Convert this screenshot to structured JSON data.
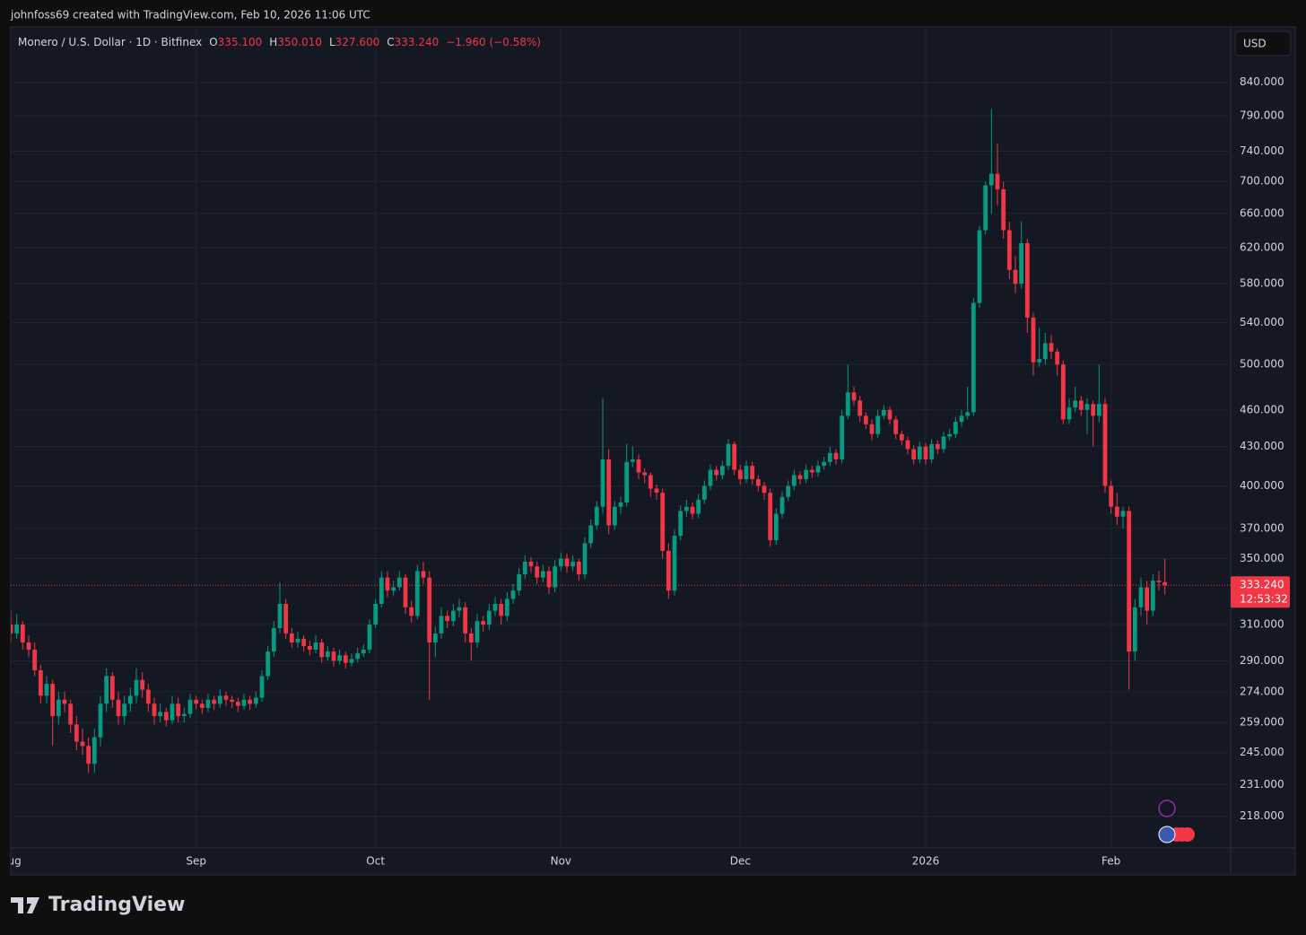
{
  "header": {
    "caption": "johnfoss69 created with TradingView.com, Feb 10, 2026 11:06 UTC"
  },
  "brand": "TradingView",
  "currency": "USD",
  "chart_data": {
    "type": "candlestick",
    "title": "Monero / U.S. Dollar · 1D · Bitfinex",
    "stats": {
      "o": "O",
      "open": "335.100",
      "h": "H",
      "high": "350.010",
      "l": "L",
      "low": "327.600",
      "c": "C",
      "close": "333.240",
      "change": "−1.960 (−0.58%)"
    },
    "last_price": {
      "value": 333.24,
      "label": "333.240"
    },
    "countdown": "12:53:32",
    "up_color": "#089981",
    "down_color": "#f23645",
    "log_scale": true,
    "grid": true,
    "ylim": [
      205.6,
      930
    ],
    "yticks": [
      {
        "value": 840,
        "label": "840.000"
      },
      {
        "value": 790,
        "label": "790.000"
      },
      {
        "value": 740,
        "label": "740.000"
      },
      {
        "value": 700,
        "label": "700.000"
      },
      {
        "value": 660,
        "label": "660.000"
      },
      {
        "value": 620,
        "label": "620.000"
      },
      {
        "value": 580,
        "label": "580.000"
      },
      {
        "value": 540,
        "label": "540.000"
      },
      {
        "value": 500,
        "label": "500.000"
      },
      {
        "value": 460,
        "label": "460.000"
      },
      {
        "value": 430,
        "label": "430.000"
      },
      {
        "value": 400,
        "label": "400.000"
      },
      {
        "value": 370,
        "label": "370.000"
      },
      {
        "value": 350,
        "label": "350.000"
      },
      {
        "value": 310,
        "label": "310.000"
      },
      {
        "value": 290,
        "label": "290.000"
      },
      {
        "value": 274,
        "label": "274.000"
      },
      {
        "value": 259,
        "label": "259.000"
      },
      {
        "value": 245,
        "label": "245.000"
      },
      {
        "value": 231,
        "label": "231.000"
      },
      {
        "value": 218,
        "label": "218.000"
      }
    ],
    "xlim": [
      "2025-08-01",
      "2026-02-21"
    ],
    "xticks": [
      {
        "value": "2025-08-01",
        "label": "Aug"
      },
      {
        "value": "2025-09-01",
        "label": "Sep"
      },
      {
        "value": "2025-10-01",
        "label": "Oct"
      },
      {
        "value": "2025-11-01",
        "label": "Nov"
      },
      {
        "value": "2025-12-01",
        "label": "Dec"
      },
      {
        "value": "2026-01-01",
        "label": "2026"
      },
      {
        "value": "2026-02-01",
        "label": "Feb"
      }
    ],
    "x": [
      "2025-08-01",
      "2025-08-02",
      "2025-08-03",
      "2025-08-04",
      "2025-08-05",
      "2025-08-06",
      "2025-08-07",
      "2025-08-08",
      "2025-08-09",
      "2025-08-10",
      "2025-08-11",
      "2025-08-12",
      "2025-08-13",
      "2025-08-14",
      "2025-08-15",
      "2025-08-16",
      "2025-08-17",
      "2025-08-18",
      "2025-08-19",
      "2025-08-20",
      "2025-08-21",
      "2025-08-22",
      "2025-08-23",
      "2025-08-24",
      "2025-08-25",
      "2025-08-26",
      "2025-08-27",
      "2025-08-28",
      "2025-08-29",
      "2025-08-30",
      "2025-08-31",
      "2025-09-01",
      "2025-09-02",
      "2025-09-03",
      "2025-09-04",
      "2025-09-05",
      "2025-09-06",
      "2025-09-07",
      "2025-09-08",
      "2025-09-09",
      "2025-09-10",
      "2025-09-11",
      "2025-09-12",
      "2025-09-13",
      "2025-09-14",
      "2025-09-15",
      "2025-09-16",
      "2025-09-17",
      "2025-09-18",
      "2025-09-19",
      "2025-09-20",
      "2025-09-21",
      "2025-09-22",
      "2025-09-23",
      "2025-09-24",
      "2025-09-25",
      "2025-09-26",
      "2025-09-27",
      "2025-09-28",
      "2025-09-29",
      "2025-09-30",
      "2025-10-01",
      "2025-10-02",
      "2025-10-03",
      "2025-10-04",
      "2025-10-05",
      "2025-10-06",
      "2025-10-07",
      "2025-10-08",
      "2025-10-09",
      "2025-10-10",
      "2025-10-11",
      "2025-10-12",
      "2025-10-13",
      "2025-10-14",
      "2025-10-15",
      "2025-10-16",
      "2025-10-17",
      "2025-10-18",
      "2025-10-19",
      "2025-10-20",
      "2025-10-21",
      "2025-10-22",
      "2025-10-23",
      "2025-10-24",
      "2025-10-25",
      "2025-10-26",
      "2025-10-27",
      "2025-10-28",
      "2025-10-29",
      "2025-10-30",
      "2025-10-31",
      "2025-11-01",
      "2025-11-02",
      "2025-11-03",
      "2025-11-04",
      "2025-11-05",
      "2025-11-06",
      "2025-11-07",
      "2025-11-08",
      "2025-11-09",
      "2025-11-10",
      "2025-11-11",
      "2025-11-12",
      "2025-11-13",
      "2025-11-14",
      "2025-11-15",
      "2025-11-16",
      "2025-11-17",
      "2025-11-18",
      "2025-11-19",
      "2025-11-20",
      "2025-11-21",
      "2025-11-22",
      "2025-11-23",
      "2025-11-24",
      "2025-11-25",
      "2025-11-26",
      "2025-11-27",
      "2025-11-28",
      "2025-11-29",
      "2025-11-30",
      "2025-12-01",
      "2025-12-02",
      "2025-12-03",
      "2025-12-04",
      "2025-12-05",
      "2025-12-06",
      "2025-12-07",
      "2025-12-08",
      "2025-12-09",
      "2025-12-10",
      "2025-12-11",
      "2025-12-12",
      "2025-12-13",
      "2025-12-14",
      "2025-12-15",
      "2025-12-16",
      "2025-12-17",
      "2025-12-18",
      "2025-12-19",
      "2025-12-20",
      "2025-12-21",
      "2025-12-22",
      "2025-12-23",
      "2025-12-24",
      "2025-12-25",
      "2025-12-26",
      "2025-12-27",
      "2025-12-28",
      "2025-12-29",
      "2025-12-30",
      "2025-12-31",
      "2026-01-01",
      "2026-01-02",
      "2026-01-03",
      "2026-01-04",
      "2026-01-05",
      "2026-01-06",
      "2026-01-07",
      "2026-01-08",
      "2026-01-09",
      "2026-01-10",
      "2026-01-11",
      "2026-01-12",
      "2026-01-13",
      "2026-01-14",
      "2026-01-15",
      "2026-01-16",
      "2026-01-17",
      "2026-01-18",
      "2026-01-19",
      "2026-01-20",
      "2026-01-21",
      "2026-01-22",
      "2026-01-23",
      "2026-01-24",
      "2026-01-25",
      "2026-01-26",
      "2026-01-27",
      "2026-01-28",
      "2026-01-29",
      "2026-01-30",
      "2026-01-31",
      "2026-02-01",
      "2026-02-02",
      "2026-02-03",
      "2026-02-04",
      "2026-02-05",
      "2026-02-06",
      "2026-02-07",
      "2026-02-08",
      "2026-02-09",
      "2026-02-10"
    ],
    "ohlc": [
      [
        310,
        318,
        300,
        305
      ],
      [
        305,
        316,
        302,
        310
      ],
      [
        310,
        312,
        296,
        300
      ],
      [
        300,
        304,
        292,
        296
      ],
      [
        296,
        300,
        282,
        285
      ],
      [
        285,
        288,
        268,
        272
      ],
      [
        272,
        282,
        268,
        278
      ],
      [
        278,
        280,
        248,
        262
      ],
      [
        262,
        274,
        258,
        270
      ],
      [
        270,
        274,
        264,
        268
      ],
      [
        268,
        270,
        254,
        258
      ],
      [
        258,
        262,
        246,
        250
      ],
      [
        250,
        256,
        244,
        248
      ],
      [
        248,
        252,
        236,
        240
      ],
      [
        240,
        256,
        236,
        252
      ],
      [
        252,
        272,
        248,
        268
      ],
      [
        268,
        286,
        264,
        282
      ],
      [
        282,
        284,
        266,
        270
      ],
      [
        270,
        274,
        258,
        262
      ],
      [
        262,
        272,
        258,
        268
      ],
      [
        268,
        276,
        264,
        272
      ],
      [
        272,
        286,
        268,
        280
      ],
      [
        280,
        284,
        271,
        275
      ],
      [
        275,
        278,
        264,
        268
      ],
      [
        268,
        271,
        258,
        262
      ],
      [
        262,
        268,
        259,
        264
      ],
      [
        264,
        266,
        257,
        260
      ],
      [
        260,
        272,
        258,
        268
      ],
      [
        268,
        271,
        259,
        262
      ],
      [
        262,
        266,
        259,
        263
      ],
      [
        263,
        273,
        261,
        270
      ],
      [
        270,
        272,
        265,
        268
      ],
      [
        268,
        270,
        263,
        266
      ],
      [
        266,
        273,
        264,
        270
      ],
      [
        270,
        272,
        265,
        268
      ],
      [
        268,
        275,
        266,
        272
      ],
      [
        272,
        274,
        267,
        270
      ],
      [
        270,
        272,
        266,
        269
      ],
      [
        269,
        271,
        264,
        267
      ],
      [
        267,
        273,
        265,
        270
      ],
      [
        270,
        272,
        265,
        268
      ],
      [
        268,
        274,
        266,
        271
      ],
      [
        271,
        285,
        269,
        282
      ],
      [
        282,
        298,
        280,
        295
      ],
      [
        295,
        312,
        292,
        308
      ],
      [
        308,
        335,
        305,
        322
      ],
      [
        322,
        325,
        302,
        305
      ],
      [
        305,
        308,
        297,
        300
      ],
      [
        300,
        306,
        297,
        302
      ],
      [
        302,
        304,
        295,
        298
      ],
      [
        298,
        301,
        293,
        296
      ],
      [
        296,
        304,
        294,
        300
      ],
      [
        300,
        302,
        289,
        292
      ],
      [
        292,
        298,
        290,
        295
      ],
      [
        295,
        297,
        287,
        290
      ],
      [
        290,
        296,
        288,
        293
      ],
      [
        293,
        295,
        286,
        289
      ],
      [
        289,
        294,
        287,
        291
      ],
      [
        291,
        297,
        289,
        294
      ],
      [
        294,
        299,
        292,
        296
      ],
      [
        296,
        313,
        294,
        310
      ],
      [
        310,
        325,
        308,
        322
      ],
      [
        322,
        342,
        320,
        338
      ],
      [
        338,
        342,
        326,
        330
      ],
      [
        330,
        336,
        327,
        332
      ],
      [
        332,
        342,
        330,
        338
      ],
      [
        338,
        340,
        316,
        320
      ],
      [
        320,
        324,
        311,
        315
      ],
      [
        315,
        346,
        313,
        342
      ],
      [
        342,
        348,
        334,
        338
      ],
      [
        338,
        342,
        270,
        300
      ],
      [
        300,
        309,
        292,
        305
      ],
      [
        305,
        320,
        302,
        315
      ],
      [
        315,
        318,
        308,
        312
      ],
      [
        312,
        322,
        309,
        318
      ],
      [
        318,
        325,
        314,
        320
      ],
      [
        320,
        323,
        300,
        305
      ],
      [
        305,
        308,
        290,
        300
      ],
      [
        300,
        316,
        297,
        312
      ],
      [
        312,
        315,
        306,
        310
      ],
      [
        310,
        322,
        307,
        318
      ],
      [
        318,
        326,
        315,
        322
      ],
      [
        322,
        325,
        310,
        315
      ],
      [
        315,
        329,
        312,
        325
      ],
      [
        325,
        334,
        322,
        330
      ],
      [
        330,
        344,
        327,
        340
      ],
      [
        340,
        352,
        337,
        348
      ],
      [
        348,
        351,
        341,
        345
      ],
      [
        345,
        348,
        334,
        338
      ],
      [
        338,
        346,
        335,
        342
      ],
      [
        342,
        345,
        328,
        332
      ],
      [
        332,
        349,
        329,
        345
      ],
      [
        345,
        354,
        342,
        350
      ],
      [
        350,
        353,
        341,
        345
      ],
      [
        345,
        352,
        342,
        348
      ],
      [
        348,
        350,
        336,
        340
      ],
      [
        340,
        364,
        337,
        360
      ],
      [
        360,
        376,
        357,
        372
      ],
      [
        372,
        389,
        369,
        385
      ],
      [
        385,
        470,
        380,
        420
      ],
      [
        420,
        428,
        366,
        372
      ],
      [
        372,
        389,
        369,
        385
      ],
      [
        385,
        392,
        380,
        388
      ],
      [
        388,
        432,
        385,
        418
      ],
      [
        418,
        430,
        414,
        420
      ],
      [
        420,
        424,
        405,
        410
      ],
      [
        410,
        413,
        402,
        408
      ],
      [
        408,
        410,
        392,
        398
      ],
      [
        398,
        401,
        390,
        395
      ],
      [
        395,
        398,
        350,
        355
      ],
      [
        355,
        360,
        325,
        330
      ],
      [
        330,
        369,
        327,
        365
      ],
      [
        365,
        386,
        362,
        382
      ],
      [
        382,
        390,
        378,
        385
      ],
      [
        385,
        388,
        376,
        380
      ],
      [
        380,
        394,
        377,
        390
      ],
      [
        390,
        404,
        387,
        400
      ],
      [
        400,
        416,
        397,
        412
      ],
      [
        412,
        415,
        404,
        408
      ],
      [
        408,
        419,
        405,
        415
      ],
      [
        415,
        436,
        412,
        432
      ],
      [
        432,
        434,
        408,
        412
      ],
      [
        412,
        416,
        401,
        405
      ],
      [
        405,
        419,
        402,
        415
      ],
      [
        415,
        418,
        401,
        405
      ],
      [
        405,
        408,
        396,
        400
      ],
      [
        400,
        403,
        390,
        395
      ],
      [
        395,
        398,
        358,
        362
      ],
      [
        362,
        384,
        359,
        380
      ],
      [
        380,
        396,
        377,
        392
      ],
      [
        392,
        404,
        389,
        400
      ],
      [
        400,
        412,
        397,
        408
      ],
      [
        408,
        411,
        401,
        405
      ],
      [
        405,
        416,
        402,
        412
      ],
      [
        412,
        415,
        406,
        410
      ],
      [
        410,
        419,
        407,
        415
      ],
      [
        415,
        422,
        412,
        418
      ],
      [
        418,
        430,
        415,
        425
      ],
      [
        425,
        428,
        416,
        420
      ],
      [
        420,
        460,
        417,
        455
      ],
      [
        455,
        500,
        452,
        475
      ],
      [
        475,
        480,
        464,
        468
      ],
      [
        468,
        472,
        450,
        455
      ],
      [
        455,
        458,
        444,
        448
      ],
      [
        448,
        452,
        435,
        440
      ],
      [
        440,
        460,
        437,
        455
      ],
      [
        455,
        464,
        452,
        460
      ],
      [
        460,
        463,
        448,
        452
      ],
      [
        452,
        455,
        436,
        440
      ],
      [
        440,
        443,
        431,
        435
      ],
      [
        435,
        438,
        424,
        428
      ],
      [
        428,
        431,
        416,
        420
      ],
      [
        420,
        434,
        417,
        430
      ],
      [
        430,
        433,
        416,
        420
      ],
      [
        420,
        436,
        417,
        432
      ],
      [
        432,
        435,
        424,
        428
      ],
      [
        428,
        442,
        425,
        438
      ],
      [
        438,
        444,
        435,
        440
      ],
      [
        440,
        454,
        437,
        450
      ],
      [
        450,
        460,
        446,
        455
      ],
      [
        455,
        480,
        452,
        458
      ],
      [
        458,
        565,
        455,
        560
      ],
      [
        560,
        645,
        555,
        640
      ],
      [
        640,
        700,
        635,
        695
      ],
      [
        695,
        800,
        660,
        710
      ],
      [
        710,
        750,
        670,
        690
      ],
      [
        690,
        700,
        630,
        640
      ],
      [
        640,
        650,
        585,
        595
      ],
      [
        595,
        610,
        570,
        580
      ],
      [
        580,
        650,
        575,
        625
      ],
      [
        625,
        630,
        530,
        545
      ],
      [
        545,
        550,
        490,
        502
      ],
      [
        502,
        535,
        498,
        505
      ],
      [
        505,
        530,
        500,
        520
      ],
      [
        520,
        528,
        505,
        512
      ],
      [
        512,
        515,
        490,
        500
      ],
      [
        500,
        504,
        448,
        452
      ],
      [
        452,
        470,
        448,
        462
      ],
      [
        462,
        480,
        458,
        468
      ],
      [
        468,
        472,
        455,
        460
      ],
      [
        460,
        470,
        440,
        465
      ],
      [
        465,
        468,
        430,
        455
      ],
      [
        455,
        500,
        450,
        465
      ],
      [
        465,
        470,
        395,
        400
      ],
      [
        400,
        404,
        380,
        385
      ],
      [
        385,
        395,
        372,
        378
      ],
      [
        378,
        385,
        370,
        382
      ],
      [
        382,
        385,
        275,
        295
      ],
      [
        295,
        325,
        290,
        320
      ],
      [
        320,
        338,
        315,
        332
      ],
      [
        332,
        336,
        310,
        318
      ],
      [
        318,
        340,
        315,
        336
      ],
      [
        336,
        342,
        330,
        335.1
      ],
      [
        335.1,
        350.01,
        327.6,
        333.24
      ]
    ]
  }
}
